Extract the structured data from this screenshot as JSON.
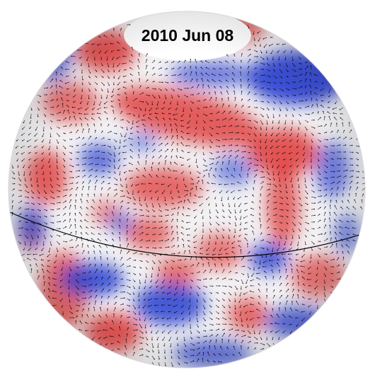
{
  "date_label": "2010 Jun 08",
  "colors": {
    "background": "#ffffff",
    "positive": "#e03a3a",
    "negative": "#2a3fd0",
    "neutral": "#f2f2f4",
    "vectors": "#000000",
    "equator": "#000000"
  },
  "layers": [
    "red-blue-field",
    "flow-vector-arrows",
    "equator-line"
  ]
}
